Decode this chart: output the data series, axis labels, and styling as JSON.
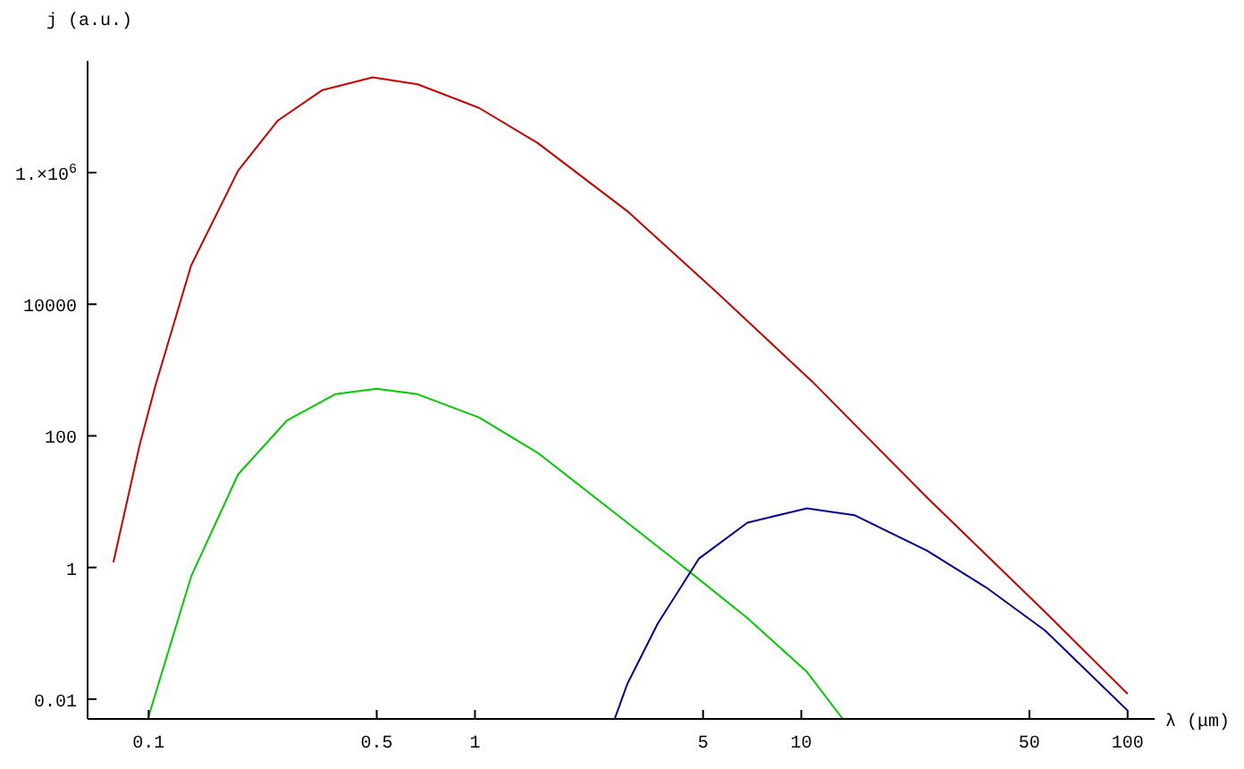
{
  "chart_data": {
    "type": "line",
    "xlabel": "λ (μm)",
    "ylabel": "j (a.u.)",
    "log": "xy",
    "xlim": [
      0.065,
      121
    ],
    "ylim": [
      0.005,
      50000000
    ],
    "xticks": [
      0.1,
      0.5,
      1,
      5,
      10,
      50,
      100
    ],
    "yticks": [
      0.01,
      1,
      100,
      10000,
      {
        "value": 1000000,
        "label": "1.×10$^{6}$"
      }
    ],
    "series": [
      {
        "color": "#cc0000",
        "x": [
          0.078,
          0.094,
          0.105,
          0.135,
          0.188,
          0.249,
          0.341,
          0.486,
          0.667,
          1.03,
          1.56,
          2.93,
          5.52,
          10.8,
          24.3,
          55.9,
          100
        ],
        "values": [
          1.2,
          75,
          590,
          39000,
          1070000,
          6200000,
          18000000,
          28000000,
          22000000,
          9600000,
          2800000,
          260000,
          15000,
          670,
          11.5,
          0.21,
          0.012
        ]
      },
      {
        "color": "#00cc00",
        "x": [
          0.1,
          0.135,
          0.188,
          0.265,
          0.373,
          0.5,
          0.667,
          1.03,
          1.56,
          2.93,
          4.45,
          6.84,
          10.4,
          13.4
        ],
        "values": [
          0.0055,
          0.73,
          26,
          170,
          430,
          520,
          430,
          190,
          55,
          4.8,
          0.94,
          0.17,
          0.026,
          0.005
        ]
      },
      {
        "color": "#000099",
        "x": [
          2.68,
          2.93,
          3.63,
          4.86,
          6.84,
          10.4,
          14.6,
          24.3,
          36.8,
          55.9,
          100
        ],
        "values": [
          0.005,
          0.017,
          0.14,
          1.37,
          4.8,
          7.9,
          6.2,
          1.8,
          0.5,
          0.11,
          0.0067
        ]
      }
    ]
  }
}
